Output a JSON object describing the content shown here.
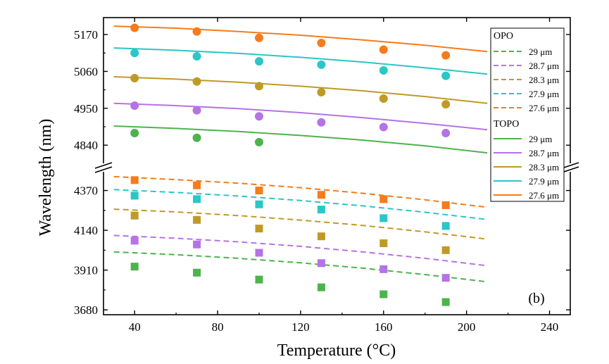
{
  "chart_data": {
    "type": "scatter",
    "xlabel": "Temperature (°C)",
    "ylabel": "Wavelength (nm)",
    "panel_label": "(b)",
    "xlim": [
      25,
      250
    ],
    "xticks": [
      40,
      80,
      120,
      160,
      200,
      240
    ],
    "axis_break": true,
    "upper": {
      "ylim": [
        4790,
        5210
      ],
      "yticks": [
        4840,
        4950,
        5060,
        5170
      ]
    },
    "lower": {
      "ylim": [
        3660,
        4470
      ],
      "yticks": [
        3680,
        3910,
        4140,
        4370
      ]
    },
    "legend": {
      "position": "right",
      "opo_header": "OPO",
      "topo_header": "TOPO",
      "entries_opo": [
        "29 μm",
        "28.7 μm",
        "28.3 μm",
        "27.9 μm",
        "27.6 μm"
      ],
      "entries_topo": [
        "29 μm",
        "28.7 μm",
        "28.3 μm",
        "27.9 μm",
        "27.6 μm"
      ]
    },
    "x_points": [
      40,
      70,
      100,
      130,
      160,
      190
    ],
    "fit_x": [
      30,
      60,
      90,
      120,
      150,
      180,
      210
    ],
    "series": [
      {
        "period": "29 μm",
        "color": "#4db34d",
        "topo_points": [
          4876,
          4862,
          4849,
          null,
          null,
          null
        ],
        "topo_fit": [
          4897,
          4890,
          4881,
          4869,
          4855,
          4838,
          4817
        ],
        "opo_points": [
          3930,
          3895,
          3855,
          3810,
          3770,
          3725
        ],
        "opo_fit": [
          4015,
          3999,
          3978,
          3952,
          3921,
          3884,
          3842
        ]
      },
      {
        "period": "28.7 μm",
        "color": "#b573e6",
        "topo_points": [
          4958,
          4944,
          4926,
          4908,
          4894,
          4876
        ],
        "topo_fit": [
          4965,
          4958,
          4949,
          4937,
          4922,
          4905,
          4886
        ],
        "opo_points": [
          4080,
          4058,
          4010,
          3950,
          3915,
          3865
        ],
        "opo_fit": [
          4110,
          4094,
          4073,
          4047,
          4015,
          3978,
          3935
        ]
      },
      {
        "period": "28.3 μm",
        "color": "#bf9a26",
        "topo_points": [
          5040,
          5030,
          5016,
          4998,
          4979,
          4962
        ],
        "topo_fit": [
          5044,
          5037,
          5028,
          5016,
          5002,
          4985,
          4965
        ],
        "opo_points": [
          4225,
          4200,
          4150,
          4105,
          4065,
          4025
        ],
        "opo_fit": [
          4262,
          4246,
          4225,
          4199,
          4168,
          4131,
          4089
        ]
      },
      {
        "period": "27.9 μm",
        "color": "#2bc6c6",
        "topo_points": [
          5115,
          5105,
          5090,
          5080,
          5063,
          5047
        ],
        "topo_fit": [
          5130,
          5123,
          5114,
          5102,
          5088,
          5071,
          5052
        ],
        "opo_points": [
          4340,
          4320,
          4290,
          4260,
          4210,
          4165
        ],
        "opo_fit": [
          4375,
          4359,
          4338,
          4312,
          4281,
          4244,
          4202
        ]
      },
      {
        "period": "27.6 μm",
        "color": "#f47c1c",
        "topo_points": [
          5190,
          5179,
          5160,
          5145,
          5125,
          5108
        ],
        "topo_fit": [
          5195,
          5189,
          5179,
          5168,
          5154,
          5138,
          5119
        ],
        "opo_points": [
          4430,
          4400,
          4370,
          4345,
          4320,
          4285
        ],
        "opo_fit": [
          4450,
          4433,
          4412,
          4386,
          4354,
          4316,
          4273
        ]
      }
    ]
  }
}
